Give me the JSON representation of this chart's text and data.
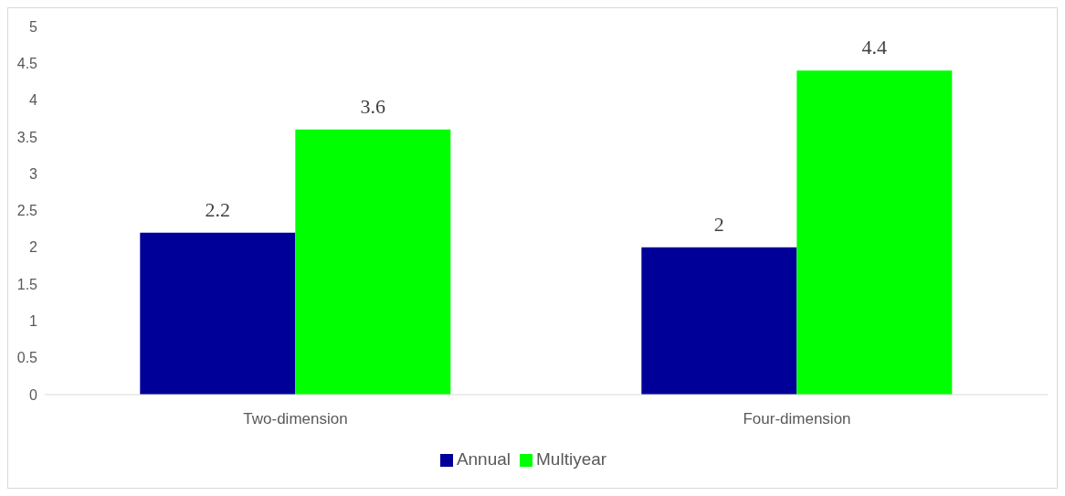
{
  "chart_data": {
    "type": "bar",
    "categories": [
      "Two-dimension",
      "Four-dimension"
    ],
    "series": [
      {
        "name": "Annual",
        "color": "#000099",
        "values": [
          2.2,
          2.0
        ]
      },
      {
        "name": "Multiyear",
        "color": "#00ff00",
        "values": [
          3.6,
          4.4
        ]
      }
    ],
    "ylim": [
      0,
      5
    ],
    "yticks": [
      0,
      0.5,
      1,
      1.5,
      2,
      2.5,
      3,
      3.5,
      4,
      4.5,
      5
    ],
    "grid": false,
    "legend": "bottom",
    "data_labels": true
  }
}
